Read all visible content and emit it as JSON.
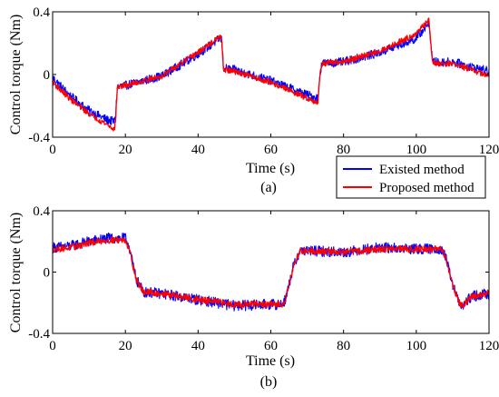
{
  "chart_data": [
    {
      "type": "line",
      "ylabel": "Control torque (Nm)",
      "xlabel": "Time (s)",
      "caption": "(a)",
      "xlim": [
        0,
        120
      ],
      "ylim": [
        -0.4,
        0.4
      ],
      "xticks": [
        "0",
        "20",
        "40",
        "60",
        "80",
        "100",
        "120"
      ],
      "yticks": [
        "-0.4",
        "0",
        "0.4"
      ],
      "grid": false,
      "legend": {
        "placement": "bottom-right",
        "entries": [
          "Existed method",
          "Proposed method"
        ]
      },
      "series": [
        {
          "name": "Existed method",
          "color": "#0000ff",
          "noise": 0.028,
          "x": [
            0,
            5,
            10,
            15,
            17,
            17.3,
            17.8,
            20,
            30,
            40,
            46,
            46.5,
            47,
            50,
            60,
            70,
            73,
            73.5,
            74,
            80,
            90,
            100,
            103.5,
            104,
            104.5,
            110,
            120
          ],
          "y": [
            -0.02,
            -0.14,
            -0.23,
            -0.29,
            -0.3,
            -0.26,
            -0.08,
            -0.07,
            -0.01,
            0.13,
            0.23,
            0.22,
            0.04,
            0.03,
            -0.04,
            -0.13,
            -0.15,
            0.0,
            0.07,
            0.08,
            0.14,
            0.23,
            0.33,
            0.2,
            0.08,
            0.08,
            0.02
          ]
        },
        {
          "name": "Proposed method",
          "color": "#ff0000",
          "noise": 0.018,
          "x": [
            0,
            5,
            10,
            15,
            17,
            17.3,
            17.8,
            20,
            30,
            40,
            46,
            46.5,
            47,
            50,
            60,
            70,
            73,
            73.5,
            74,
            80,
            90,
            100,
            103.5,
            104,
            104.5,
            110,
            120
          ],
          "y": [
            -0.05,
            -0.16,
            -0.25,
            -0.32,
            -0.35,
            -0.3,
            -0.08,
            -0.07,
            -0.01,
            0.14,
            0.24,
            0.22,
            0.03,
            0.02,
            -0.05,
            -0.15,
            -0.18,
            0.0,
            0.07,
            0.08,
            0.15,
            0.26,
            0.35,
            0.2,
            0.07,
            0.07,
            -0.01
          ]
        }
      ]
    },
    {
      "type": "line",
      "ylabel": "Control torque (Nm)",
      "xlabel": "Time (s)",
      "caption": "(b)",
      "xlim": [
        0,
        120
      ],
      "ylim": [
        -0.4,
        0.4
      ],
      "xticks": [
        "0",
        "20",
        "40",
        "60",
        "80",
        "100",
        "120"
      ],
      "yticks": [
        "-0.4",
        "0",
        "0.4"
      ],
      "grid": false,
      "series": [
        {
          "name": "Existed method",
          "color": "#0000ff",
          "noise": 0.035,
          "x": [
            0,
            5,
            10,
            15,
            20,
            21,
            23,
            25,
            30,
            40,
            50,
            60,
            63,
            64,
            66,
            68,
            70,
            80,
            90,
            100,
            107,
            108,
            110,
            112,
            113,
            115,
            120
          ],
          "y": [
            0.16,
            0.17,
            0.2,
            0.22,
            0.22,
            0.17,
            -0.05,
            -0.13,
            -0.14,
            -0.18,
            -0.22,
            -0.21,
            -0.21,
            -0.18,
            0.02,
            0.14,
            0.14,
            0.13,
            0.16,
            0.15,
            0.15,
            0.1,
            -0.08,
            -0.22,
            -0.22,
            -0.16,
            -0.14
          ]
        },
        {
          "name": "Proposed method",
          "color": "#ff0000",
          "noise": 0.022,
          "x": [
            0,
            5,
            10,
            15,
            20,
            21,
            23,
            25,
            30,
            40,
            50,
            60,
            63,
            64,
            66,
            68,
            70,
            80,
            90,
            100,
            107,
            108,
            110,
            112,
            113,
            115,
            120
          ],
          "y": [
            0.15,
            0.16,
            0.19,
            0.21,
            0.21,
            0.16,
            -0.05,
            -0.13,
            -0.14,
            -0.18,
            -0.21,
            -0.21,
            -0.21,
            -0.18,
            0.02,
            0.14,
            0.14,
            0.13,
            0.15,
            0.15,
            0.15,
            0.1,
            -0.08,
            -0.21,
            -0.22,
            -0.16,
            -0.14
          ]
        }
      ]
    }
  ]
}
